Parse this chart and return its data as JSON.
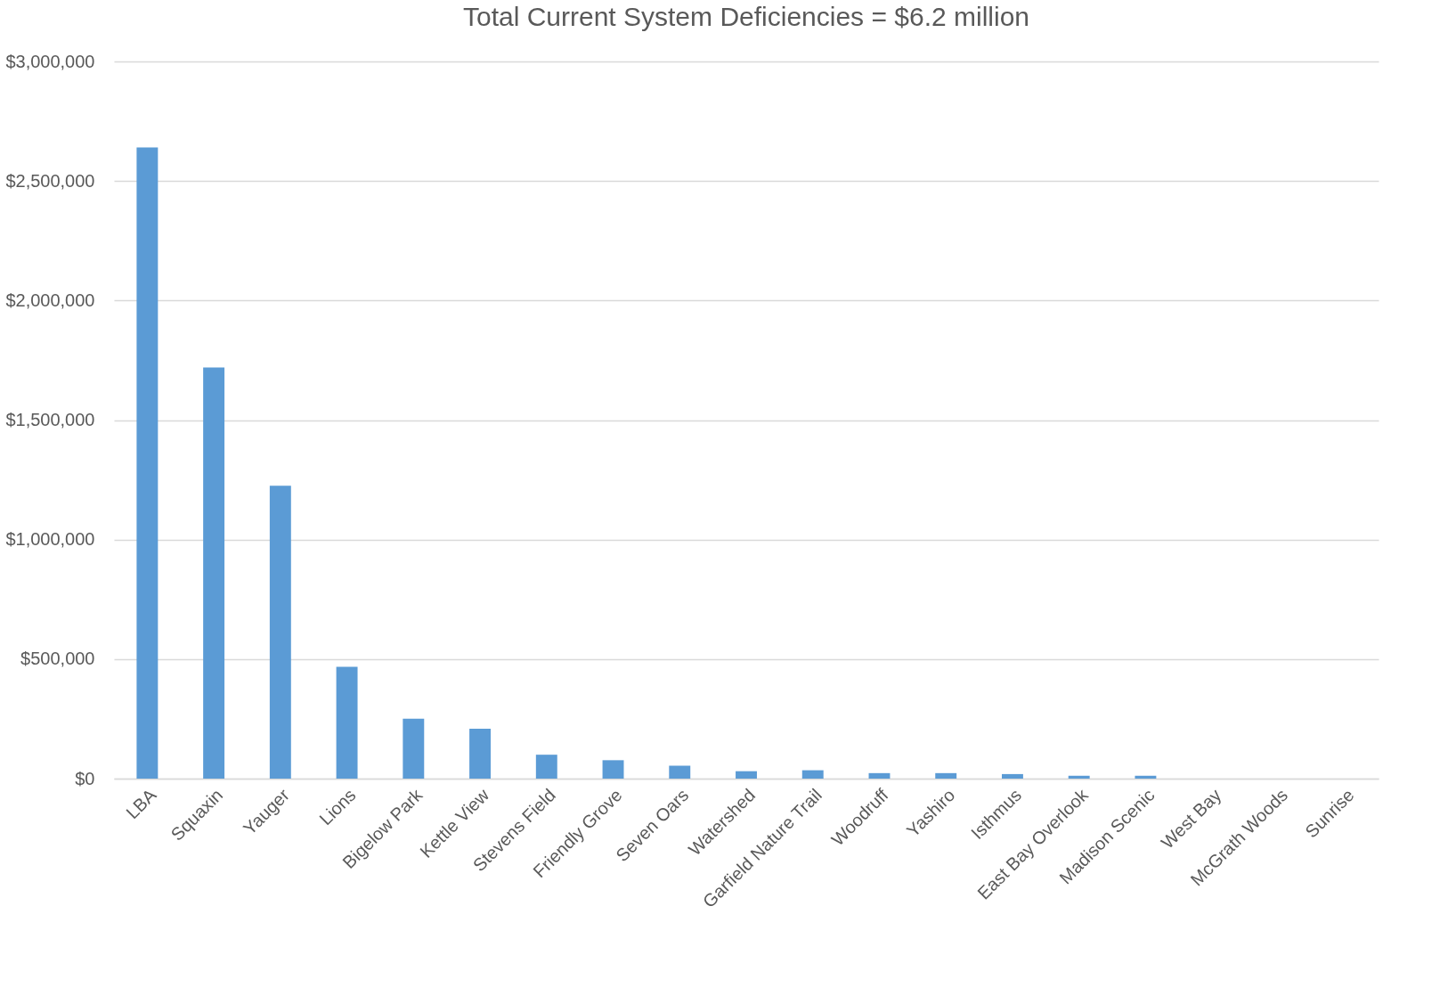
{
  "chart_data": {
    "type": "bar",
    "title": "Total Current System Deficiencies = $6.2 million",
    "categories": [
      "LBA",
      "Squaxin",
      "Yauger",
      "Lions",
      "Bigelow Park",
      "Kettle View",
      "Stevens Field",
      "Friendly Grove",
      "Seven Oars",
      "Watershed",
      "Garfield Nature Trail",
      "Woodruff",
      "Yashiro",
      "Isthmus",
      "East Bay Overlook",
      "Madison Scenic",
      "West Bay",
      "McGrath Woods",
      "Sunrise"
    ],
    "values": [
      2640000,
      1720000,
      1225000,
      468000,
      251000,
      209000,
      100000,
      77000,
      54000,
      31000,
      35000,
      23000,
      23000,
      19000,
      12000,
      12000,
      0,
      0,
      0
    ],
    "color": "#5b9bd5",
    "ylim": [
      0,
      3000000
    ],
    "yticks": [
      {
        "value": 0,
        "label": "$0"
      },
      {
        "value": 500000,
        "label": "$500,000"
      },
      {
        "value": 1000000,
        "label": "$1,000,000"
      },
      {
        "value": 1500000,
        "label": "$1,500,000"
      },
      {
        "value": 2000000,
        "label": "$2,000,000"
      },
      {
        "value": 2500000,
        "label": "$2,500,000"
      },
      {
        "value": 3000000,
        "label": "$3,000,000"
      }
    ],
    "grid": "y"
  }
}
